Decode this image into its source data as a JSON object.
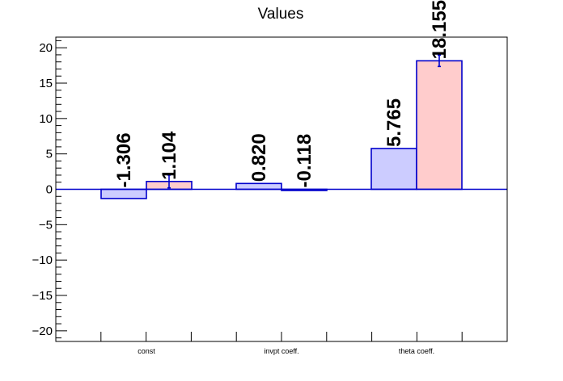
{
  "chart_data": {
    "type": "bar",
    "title": "Values",
    "xlabel": "",
    "ylabel": "",
    "ylim": [
      -21.5,
      21.5
    ],
    "yticks": [
      -20,
      -15,
      -10,
      -5,
      0,
      5,
      10,
      15,
      20
    ],
    "ytick_labels": [
      "−20",
      "−15",
      "−10",
      "−5",
      "0",
      "5",
      "10",
      "15",
      "20"
    ],
    "categories": [
      "const",
      "invpt coeff.",
      "theta coeff."
    ],
    "series": [
      {
        "color": "#ccccff",
        "edge_color": "#0000cc",
        "values": [
          -1.306,
          0.82,
          5.765
        ],
        "labels": [
          "-1.306",
          "0.820",
          "5.765"
        ]
      },
      {
        "color": "#ffcccc",
        "edge_color": "#0000cc",
        "values": [
          1.104,
          -0.118,
          18.155
        ],
        "labels": [
          "1.104",
          "-0.118",
          "18.155"
        ],
        "errors": [
          0.9,
          0,
          0.8
        ]
      }
    ],
    "grid": false,
    "legend": "none"
  }
}
